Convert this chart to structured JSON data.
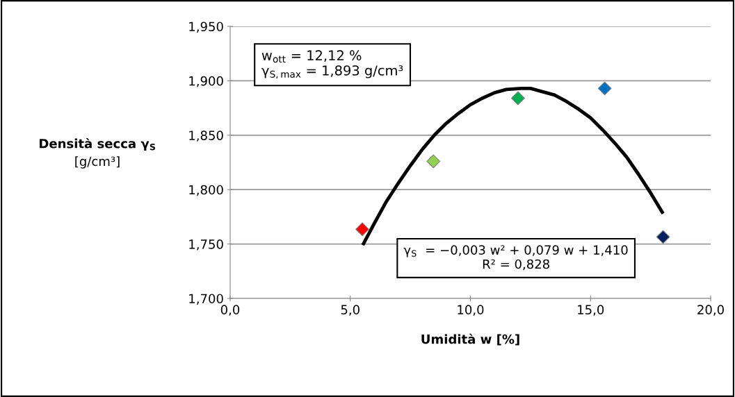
{
  "chart_data": {
    "type": "scatter",
    "xlabel": "Umidità w [%]",
    "ylabel": "Densità secca γ$_{S}$\n[g/cm³]",
    "series": [
      {
        "x": [
          5.5,
          8.46,
          11.98,
          15.59,
          18.02
        ],
        "values": [
          1.7636,
          1.826,
          1.884,
          1.893,
          1.7565
        ],
        "colors": [
          "#ff0000",
          "#92d050",
          "#00b050",
          "#0070c0",
          "#002060"
        ],
        "marker": "diamond"
      },
      {
        "type": "line",
        "color": "#000000",
        "x": [
          5.52,
          6.0,
          6.5,
          7.0,
          7.5,
          8.0,
          8.5,
          9.0,
          9.5,
          10.0,
          10.5,
          11.0,
          11.5,
          12.12,
          12.5,
          13.0,
          13.5,
          14.0,
          14.5,
          15.0,
          15.5,
          16.0,
          16.5,
          17.0,
          17.5,
          18.02
        ],
        "values": [
          1.749,
          1.769,
          1.789,
          1.806,
          1.822,
          1.837,
          1.85,
          1.861,
          1.87,
          1.878,
          1.884,
          1.889,
          1.892,
          1.893,
          1.893,
          1.89,
          1.887,
          1.881,
          1.874,
          1.866,
          1.855,
          1.843,
          1.83,
          1.814,
          1.797,
          1.778
        ],
        "marker": "none",
        "line_style": "solid"
      }
    ],
    "xlim": [
      0,
      20
    ],
    "xticks": [
      {
        "value": 0,
        "label": "0,0"
      },
      {
        "value": 5,
        "label": "5,0"
      },
      {
        "value": 10,
        "label": "10,0"
      },
      {
        "value": 15,
        "label": "15,0"
      },
      {
        "value": 20,
        "label": "20,0"
      }
    ],
    "ylim": [
      1.7,
      1.95
    ],
    "yticks": [
      {
        "value": 1.7,
        "label": "1,700"
      },
      {
        "value": 1.75,
        "label": "1,750"
      },
      {
        "value": 1.8,
        "label": "1,800"
      },
      {
        "value": 1.85,
        "label": "1,850"
      },
      {
        "value": 1.9,
        "label": "1,900"
      },
      {
        "value": 1.95,
        "label": "1,950"
      }
    ],
    "grid": "y",
    "legend": false,
    "annotations": [
      "w$_{ott}$ = 12,12 %\nγ$_{S,max}$ = 1,893 g/cm³",
      "γ$_{S}$  = −0,003 w² + 0,079 w + 1,410\nR² = 0,828"
    ]
  }
}
